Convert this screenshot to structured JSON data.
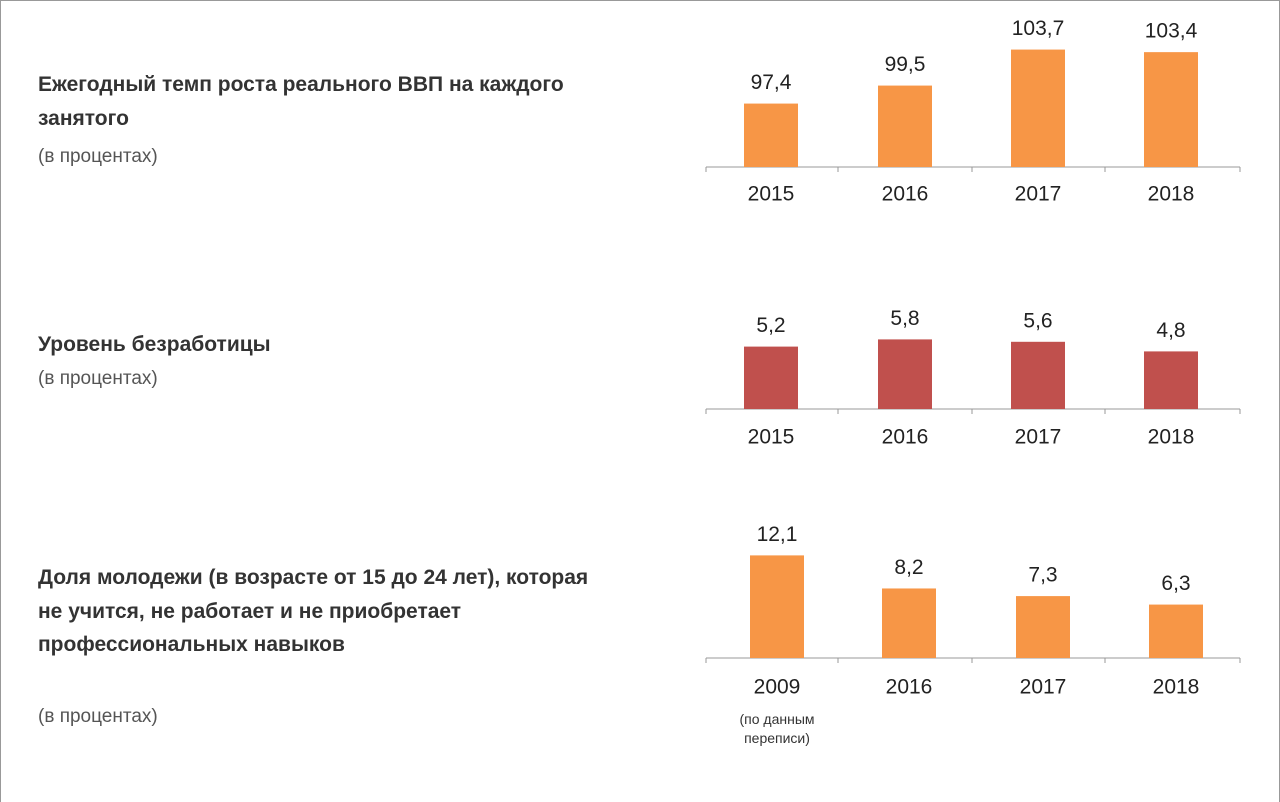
{
  "chart_data": [
    {
      "type": "bar",
      "title": "Ежегодный темп роста реального ВВП на каждого занятого",
      "subtitle": "(в процентах)",
      "categories": [
        "2015",
        "2016",
        "2017",
        "2018"
      ],
      "values": [
        97.4,
        99.5,
        103.7,
        103.4
      ],
      "value_labels": [
        "97,4",
        "99,5",
        "103,7",
        "103,4"
      ],
      "color": "#f79646",
      "ylim": [
        90,
        104
      ]
    },
    {
      "type": "bar",
      "title": "Уровень безработицы",
      "subtitle": "(в процентах)",
      "categories": [
        "2015",
        "2016",
        "2017",
        "2018"
      ],
      "values": [
        5.2,
        5.8,
        5.6,
        4.8
      ],
      "value_labels": [
        "5,2",
        "5,8",
        "5,6",
        "4,8"
      ],
      "color": "#c0504d",
      "ylim": [
        0,
        6
      ]
    },
    {
      "type": "bar",
      "title": "Доля молодежи (в возрасте от 15 до 24 лет), которая не учится, не работает и не приобретает профессиональных навыков",
      "subtitle": "(в процентах)",
      "categories": [
        "2009",
        "2016",
        "2017",
        "2018"
      ],
      "values": [
        12.1,
        8.2,
        7.3,
        6.3
      ],
      "value_labels": [
        "12,1",
        "8,2",
        "7,3",
        "6,3"
      ],
      "color": "#f79646",
      "ylim": [
        0,
        12.5
      ],
      "annotation": "(по данным переписи)"
    }
  ]
}
